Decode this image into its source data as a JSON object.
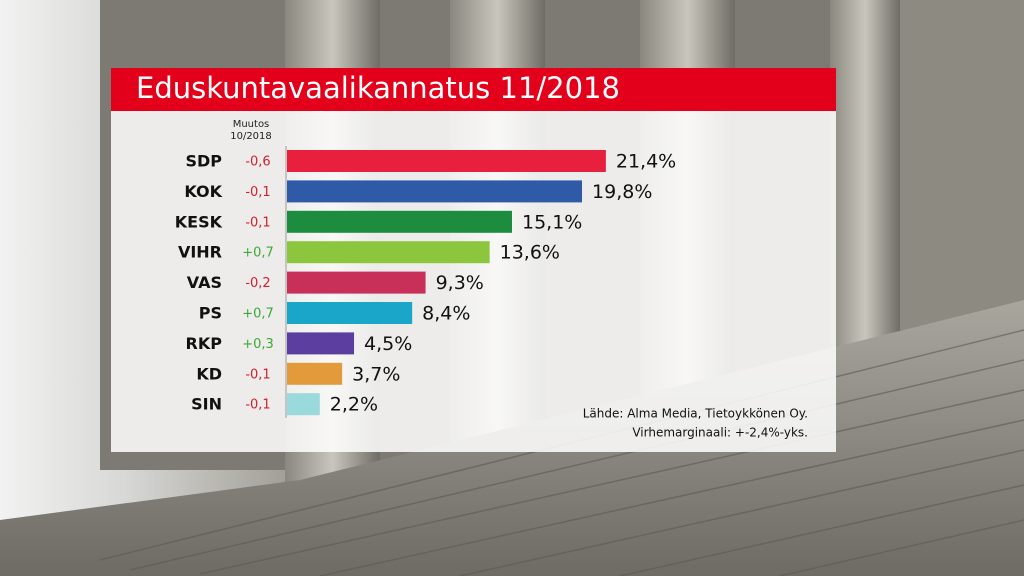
{
  "chart_data": {
    "type": "bar",
    "orientation": "horizontal",
    "title": "Eduskuntavaalikannatus 11/2018",
    "change_header": [
      "Muutos",
      "10/2018"
    ],
    "categories": [
      "SDP",
      "KOK",
      "KESK",
      "VIHR",
      "VAS",
      "PS",
      "RKP",
      "KD",
      "SIN"
    ],
    "values": [
      21.4,
      19.8,
      15.1,
      13.6,
      9.3,
      8.4,
      4.5,
      3.7,
      2.2
    ],
    "value_labels": [
      "21,4%",
      "19,8%",
      "15,1%",
      "13,6%",
      "9,3%",
      "8,4%",
      "4,5%",
      "3,7%",
      "2,2%"
    ],
    "colors": [
      "#e8203e",
      "#2f5aa8",
      "#1e8c3f",
      "#8cc63f",
      "#c8305a",
      "#1aa6c8",
      "#5b3ea0",
      "#e39a3a",
      "#9ad9dc"
    ],
    "changes": [
      -0.6,
      -0.1,
      -0.1,
      0.7,
      -0.2,
      0.7,
      0.3,
      -0.1,
      -0.1
    ],
    "change_labels": [
      "-0,6",
      "-0,1",
      "-0,1",
      "+0,7",
      "-0,2",
      "+0,7",
      "+0,3",
      "-0,1",
      "-0,1"
    ],
    "change_colors": {
      "negative": "#d2202e",
      "positive": "#3aaa35"
    },
    "notes": [
      "Lähde: Alma Media, Tietoykkönen Oy.",
      "Virhemarginaali: +-2,4%-yks."
    ]
  }
}
